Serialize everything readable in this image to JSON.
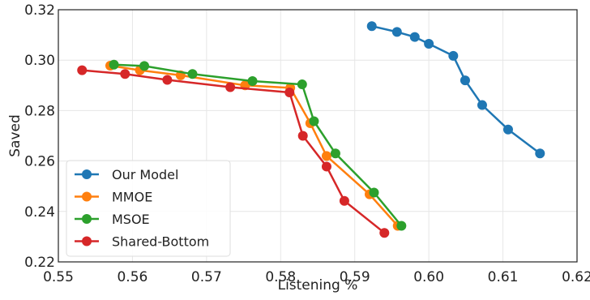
{
  "chart_data": {
    "type": "line",
    "title": "",
    "xlabel": "Listening %",
    "ylabel": "Saved",
    "xlim": [
      0.55,
      0.62
    ],
    "ylim": [
      0.22,
      0.32
    ],
    "xticks": [
      "0.55",
      "0.56",
      "0.57",
      "0.58",
      "0.59",
      "0.60",
      "0.61",
      "0.62"
    ],
    "yticks": [
      "0.22",
      "0.24",
      "0.26",
      "0.28",
      "0.30",
      "0.32"
    ],
    "grid": true,
    "legend_position": "bottom-left",
    "series": [
      {
        "name": "Our Model",
        "color": "#1f77b4",
        "points": [
          [
            0.5923,
            0.3135
          ],
          [
            0.5957,
            0.3112
          ],
          [
            0.5981,
            0.3092
          ],
          [
            0.6,
            0.3065
          ],
          [
            0.6033,
            0.3017
          ],
          [
            0.6049,
            0.292
          ],
          [
            0.6072,
            0.2822
          ],
          [
            0.6107,
            0.2725
          ],
          [
            0.615,
            0.263
          ]
        ]
      },
      {
        "name": "MMOE",
        "color": "#ff7f0e",
        "points": [
          [
            0.557,
            0.2978
          ],
          [
            0.561,
            0.296
          ],
          [
            0.5665,
            0.294
          ],
          [
            0.5752,
            0.29
          ],
          [
            0.5813,
            0.289
          ],
          [
            0.584,
            0.275
          ],
          [
            0.5862,
            0.262
          ],
          [
            0.592,
            0.2468
          ],
          [
            0.5958,
            0.2343
          ]
        ]
      },
      {
        "name": "MSOE",
        "color": "#2ca02c",
        "points": [
          [
            0.5575,
            0.2982
          ],
          [
            0.5616,
            0.2977
          ],
          [
            0.5681,
            0.2945
          ],
          [
            0.5762,
            0.2917
          ],
          [
            0.5829,
            0.2904
          ],
          [
            0.5845,
            0.2758
          ],
          [
            0.5874,
            0.263
          ],
          [
            0.5926,
            0.2475
          ],
          [
            0.5963,
            0.2343
          ]
        ]
      },
      {
        "name": "Shared-Bottom",
        "color": "#d62728",
        "points": [
          [
            0.5532,
            0.296
          ],
          [
            0.559,
            0.2945
          ],
          [
            0.5647,
            0.2922
          ],
          [
            0.5732,
            0.2893
          ],
          [
            0.5812,
            0.2872
          ],
          [
            0.583,
            0.27
          ],
          [
            0.5862,
            0.2578
          ],
          [
            0.5886,
            0.2442
          ],
          [
            0.594,
            0.2315
          ]
        ]
      }
    ]
  }
}
